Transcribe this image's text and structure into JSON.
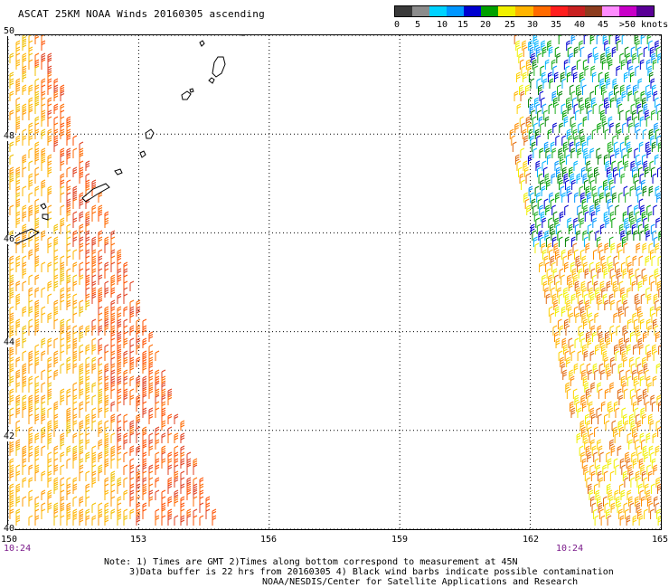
{
  "title": "ASCAT 25KM NOAA Winds 20160305 ascending",
  "legend": {
    "unit_label": ">50 knots",
    "ticks": [
      "0",
      "5",
      "10",
      "15",
      "20",
      "25",
      "30",
      "35",
      "40",
      "45"
    ],
    "colors": [
      "#3a3a3a",
      "#8c8c8c",
      "#00d2ff",
      "#0096ff",
      "#0000d0",
      "#00a000",
      "#f0f000",
      "#ffb400",
      "#ff6a00",
      "#ff1e1e",
      "#c82020",
      "#8c3c1e",
      "#ff8cff",
      "#c800c8",
      "#5a0096"
    ]
  },
  "map": {
    "lat_labels": [
      "50",
      "48",
      "46",
      "44",
      "42",
      "40"
    ],
    "lon_labels": [
      "150",
      "153",
      "156",
      "159",
      "162",
      "165"
    ],
    "lat_range": [
      40,
      50
    ],
    "lon_range": [
      150,
      165
    ],
    "grid": "dotted",
    "time_labels": [
      "10:24",
      "10:24"
    ]
  },
  "notes": {
    "line1": "Note: 1) Times are GMT 2)Times along bottom correspond to measurement at 45N",
    "line2": "3)Data buffer is 22 hrs from 20160305 4) Black wind barbs indicate possible contamination",
    "line3": "NOAA/NESDIS/Center for Satellite Applications and Research"
  }
}
